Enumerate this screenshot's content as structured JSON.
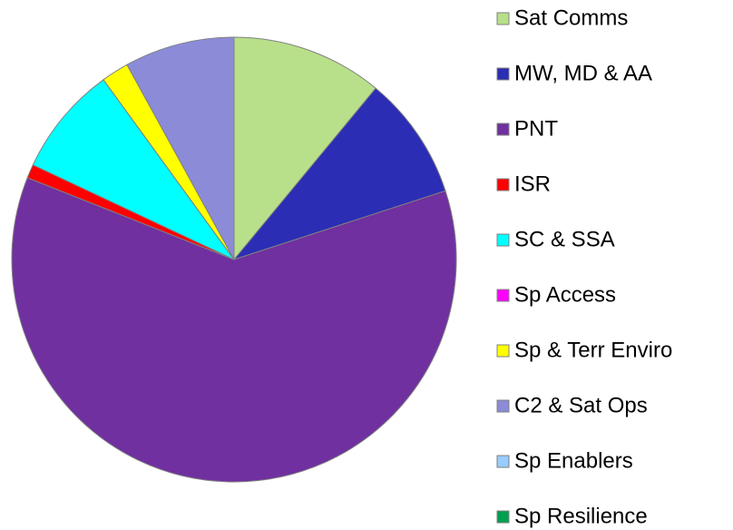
{
  "chart_data": {
    "type": "pie",
    "categories": [
      "Sat Comms",
      "MW, MD & AA",
      "PNT",
      "ISR",
      "SC & SSA",
      "Sp Access",
      "Sp & Terr Enviro",
      "C2 & Sat Ops",
      "Sp Enablers",
      "Sp Resilience"
    ],
    "values": [
      11,
      9,
      61,
      1,
      8,
      0,
      2,
      8,
      0,
      0
    ],
    "colors": [
      "#b8e08a",
      "#2b2db5",
      "#7030a0",
      "#ff0000",
      "#00ffff",
      "#ff00ff",
      "#ffff00",
      "#8b8bd8",
      "#99ccff",
      "#00a050"
    ],
    "legend": "right"
  }
}
